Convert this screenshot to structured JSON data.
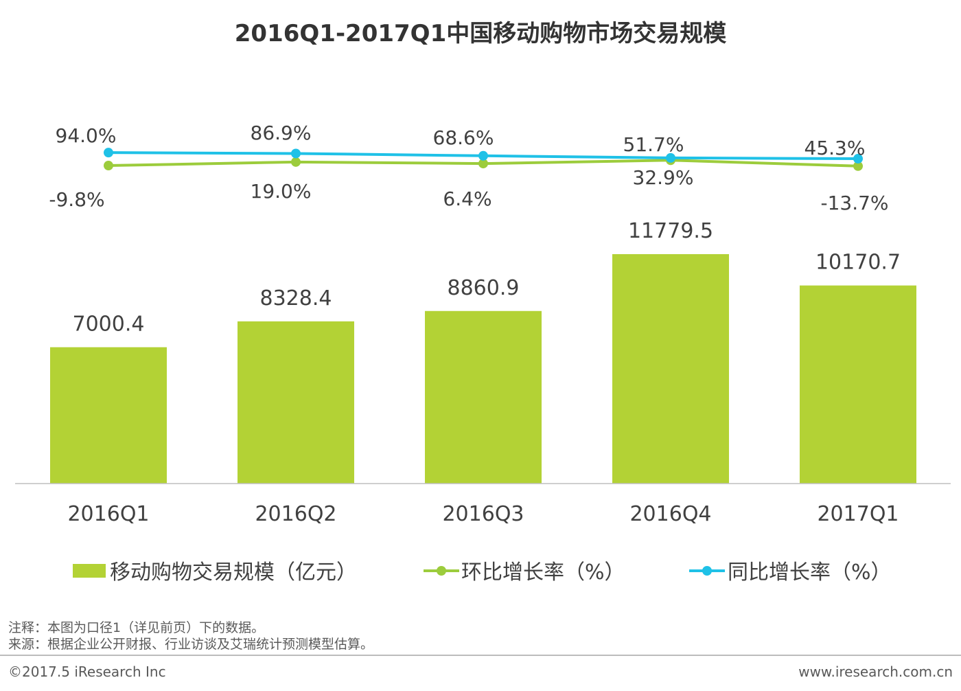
{
  "colors": {
    "bar": "#b3d235",
    "mom_line": "#9ccc3c",
    "yoy_line": "#1fc1e7",
    "axis": "#bfbfbf",
    "text": "#404040"
  },
  "chart_data": {
    "type": "bar+line",
    "title": "2016Q1-2017Q1中国移动购物市场交易规模",
    "categories": [
      "2016Q1",
      "2016Q2",
      "2016Q3",
      "2016Q4",
      "2017Q1"
    ],
    "series": [
      {
        "name": "移动购物交易规模（亿元）",
        "type": "bar",
        "values": [
          7000.4,
          8328.4,
          8860.9,
          11779.5,
          10170.7
        ],
        "labels": [
          "7000.4",
          "8328.4",
          "8860.9",
          "11779.5",
          "10170.7"
        ]
      },
      {
        "name": "环比增长率（%）",
        "type": "line",
        "values": [
          -9.8,
          19.0,
          6.4,
          32.9,
          -13.7
        ],
        "labels": [
          "-9.8%",
          "19.0%",
          "6.4%",
          "32.9%",
          "-13.7%"
        ]
      },
      {
        "name": "同比增长率（%）",
        "type": "line",
        "values": [
          94.0,
          86.9,
          68.6,
          51.7,
          45.3
        ],
        "labels": [
          "94.0%",
          "86.9%",
          "68.6%",
          "51.7%",
          "45.3%"
        ]
      }
    ],
    "legend_position": "bottom",
    "grid": false
  },
  "notes": {
    "note": "注释：本图为口径1（详见前页）下的数据。",
    "source": "来源：根据企业公开财报、行业访谈及艾瑞统计预测模型估算。"
  },
  "footer": {
    "copyright": "©2017.5 iResearch Inc",
    "website": "www.iresearch.com.cn"
  }
}
